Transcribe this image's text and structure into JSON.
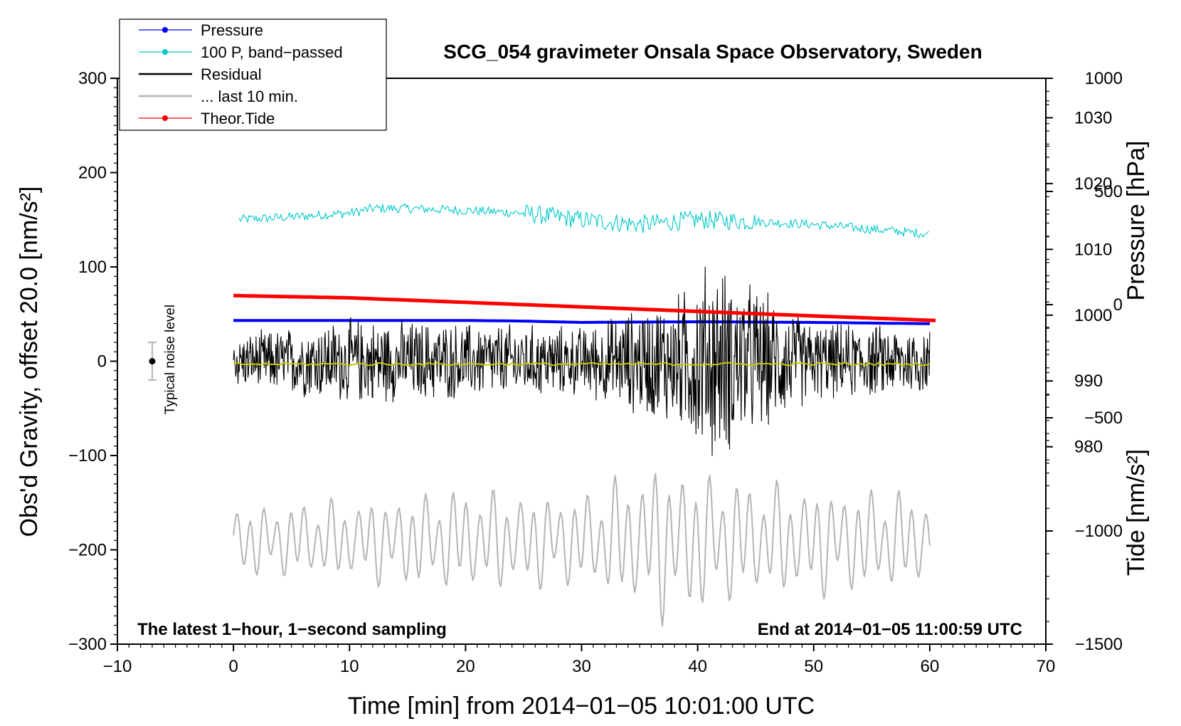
{
  "chart_data": {
    "type": "line",
    "title": "SCG_054 gravimeter Onsala Space Observatory, Sweden",
    "xlabel": "Time [min] from 2014−01−05 10:01:00 UTC",
    "ylabel_left": "Obs'd Gravity, offset 20.0 [nm/s²]",
    "ylabel_right_top": "Pressure [hPa]",
    "ylabel_right_bottom": "Tide [nm/s²]",
    "xlim": [
      -10,
      70
    ],
    "ylim": [
      -300,
      300
    ],
    "pressure_lim": [
      1036,
      950
    ],
    "tide_lim": [
      -1500,
      1000
    ],
    "x_ticks": [
      "−10",
      "0",
      "10",
      "20",
      "30",
      "40",
      "50",
      "60",
      "70"
    ],
    "y_ticks": [
      "300",
      "200",
      "100",
      "0",
      "−100",
      "−200",
      "−300"
    ],
    "pressure_ticks": [
      "1030",
      "1020",
      "1010",
      "1000",
      "990",
      "980"
    ],
    "tide_ticks": [
      "1000",
      "500",
      "0",
      "−500",
      "−1000",
      "−1500"
    ],
    "annotation_left": "The latest 1−hour, 1−second sampling",
    "annotation_right": "End at 2014−01−05 11:00:59 UTC",
    "noise_label": "Typical noise level",
    "noise_bar": {
      "x": -7,
      "center": 0,
      "half_range": 20
    },
    "legend": [
      {
        "label": "Pressure",
        "color": "#0000ff"
      },
      {
        "label": "100 P, band−passed",
        "color": "#00c8c8"
      },
      {
        "label": "Residual",
        "color": "#000000"
      },
      {
        "label": "... last 10 min.",
        "color": "#b4b4b4"
      },
      {
        "label": "Theor.Tide",
        "color": "#ff0000"
      }
    ],
    "series": [
      {
        "name": "Pressure",
        "color": "#0000ff",
        "axis": "pressure",
        "x": [
          0,
          10,
          20,
          25,
          30,
          40,
          50,
          55,
          60
        ],
        "values": [
          999.2,
          999.2,
          999.2,
          999.1,
          998.9,
          999.0,
          998.9,
          998.8,
          998.7
        ]
      },
      {
        "name": "100 P, band−passed",
        "color": "#00c8c8",
        "axis": "left",
        "x": [
          0,
          5,
          10,
          12,
          15,
          20,
          25,
          30,
          35,
          40,
          45,
          50,
          55,
          60
        ],
        "values": [
          150,
          153,
          157,
          162,
          162,
          160,
          157,
          150,
          145,
          150,
          148,
          145,
          140,
          135
        ]
      },
      {
        "name": "Residual",
        "color": "#000000",
        "axis": "left",
        "x": [
          0,
          10,
          20,
          30,
          38.5,
          41,
          50,
          60
        ],
        "amplitude": [
          30,
          50,
          45,
          40,
          80,
          120,
          45,
          40
        ]
      },
      {
        "name": "Residual smoothed",
        "color": "#c8c800",
        "axis": "left",
        "x": [
          0,
          60
        ],
        "values": [
          -3,
          -3
        ]
      },
      {
        "name": "... last 10 min.",
        "color": "#b4b4b4",
        "axis": "left",
        "x": [
          0,
          10,
          20,
          30,
          37,
          45,
          55,
          60
        ],
        "center": [
          -190,
          -190,
          -190,
          -190,
          -190,
          -190,
          -190,
          -190
        ],
        "amplitude": [
          30,
          35,
          45,
          40,
          70,
          50,
          45,
          40
        ]
      },
      {
        "name": "Theor.Tide",
        "color": "#ff0000",
        "axis": "tide",
        "x": [
          0,
          10,
          20,
          30,
          40,
          50,
          60.5
        ],
        "values": [
          40,
          30,
          10,
          -10,
          -30,
          -50,
          -70
        ]
      }
    ]
  }
}
